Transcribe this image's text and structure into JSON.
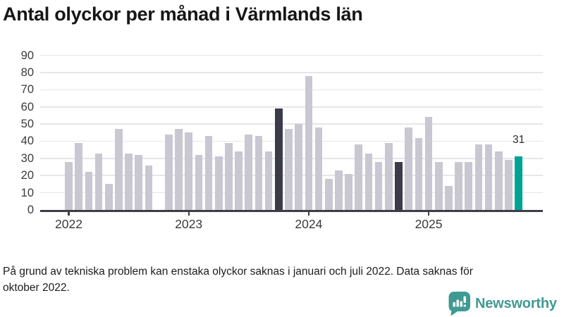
{
  "header": {
    "title": "Antal olyckor per månad i Värmlands län"
  },
  "footnote": {
    "line1": "På grund av tekniska problem kan enstaka olyckor saknas i januari och juli 2022. Data saknas för",
    "line2": "oktober 2022."
  },
  "branding": {
    "name": "Newsworthy",
    "icon": "newsworthy-bubble-chart-icon"
  },
  "colors": {
    "bar_base": "#c9c7d2",
    "bar_dark": "#3b3b4a",
    "bar_accent": "#00a296",
    "axis": "#3d3d47",
    "grid": "#e6e5ea",
    "tick_label": "#3a3a3a",
    "brand_teal": "#3f9a92"
  },
  "chart_data": {
    "type": "bar",
    "title": "Antal olyckor per månad i Värmlands län",
    "xlabel": "",
    "ylabel": "",
    "ylim": [
      0,
      90
    ],
    "yticks": [
      0,
      10,
      20,
      30,
      40,
      50,
      60,
      70,
      80,
      90
    ],
    "grid": "horizontal",
    "legend": "none",
    "missing_months": [
      "2022-10"
    ],
    "annotation": {
      "text": "31",
      "month": "2025-10"
    },
    "xticks": [
      {
        "label": "2022",
        "month_index": 0
      },
      {
        "label": "2023",
        "month_index": 12
      },
      {
        "label": "2024",
        "month_index": 24
      },
      {
        "label": "2025",
        "month_index": 36
      }
    ],
    "points": [
      {
        "month": "2022-01",
        "value": 28,
        "highlight": "base"
      },
      {
        "month": "2022-02",
        "value": 39,
        "highlight": "base"
      },
      {
        "month": "2022-03",
        "value": 22,
        "highlight": "base"
      },
      {
        "month": "2022-04",
        "value": 33,
        "highlight": "base"
      },
      {
        "month": "2022-05",
        "value": 15,
        "highlight": "base"
      },
      {
        "month": "2022-06",
        "value": 47,
        "highlight": "base"
      },
      {
        "month": "2022-07",
        "value": 33,
        "highlight": "base"
      },
      {
        "month": "2022-08",
        "value": 32,
        "highlight": "base"
      },
      {
        "month": "2022-09",
        "value": 26,
        "highlight": "base"
      },
      {
        "month": "2022-10",
        "value": null,
        "highlight": "base"
      },
      {
        "month": "2022-11",
        "value": 44,
        "highlight": "base"
      },
      {
        "month": "2022-12",
        "value": 47,
        "highlight": "base"
      },
      {
        "month": "2023-01",
        "value": 45,
        "highlight": "base"
      },
      {
        "month": "2023-02",
        "value": 32,
        "highlight": "base"
      },
      {
        "month": "2023-03",
        "value": 43,
        "highlight": "base"
      },
      {
        "month": "2023-04",
        "value": 31,
        "highlight": "base"
      },
      {
        "month": "2023-05",
        "value": 39,
        "highlight": "base"
      },
      {
        "month": "2023-06",
        "value": 34,
        "highlight": "base"
      },
      {
        "month": "2023-07",
        "value": 44,
        "highlight": "base"
      },
      {
        "month": "2023-08",
        "value": 43,
        "highlight": "base"
      },
      {
        "month": "2023-09",
        "value": 34,
        "highlight": "base"
      },
      {
        "month": "2023-10",
        "value": 59,
        "highlight": "dark"
      },
      {
        "month": "2023-11",
        "value": 47,
        "highlight": "base"
      },
      {
        "month": "2023-12",
        "value": 50,
        "highlight": "base"
      },
      {
        "month": "2024-01",
        "value": 78,
        "highlight": "base"
      },
      {
        "month": "2024-02",
        "value": 48,
        "highlight": "base"
      },
      {
        "month": "2024-03",
        "value": 18,
        "highlight": "base"
      },
      {
        "month": "2024-04",
        "value": 23,
        "highlight": "base"
      },
      {
        "month": "2024-05",
        "value": 21,
        "highlight": "base"
      },
      {
        "month": "2024-06",
        "value": 38,
        "highlight": "base"
      },
      {
        "month": "2024-07",
        "value": 33,
        "highlight": "base"
      },
      {
        "month": "2024-08",
        "value": 28,
        "highlight": "base"
      },
      {
        "month": "2024-09",
        "value": 39,
        "highlight": "base"
      },
      {
        "month": "2024-10",
        "value": 28,
        "highlight": "dark"
      },
      {
        "month": "2024-11",
        "value": 48,
        "highlight": "base"
      },
      {
        "month": "2024-12",
        "value": 42,
        "highlight": "base"
      },
      {
        "month": "2025-01",
        "value": 54,
        "highlight": "base"
      },
      {
        "month": "2025-02",
        "value": 28,
        "highlight": "base"
      },
      {
        "month": "2025-03",
        "value": 14,
        "highlight": "base"
      },
      {
        "month": "2025-04",
        "value": 28,
        "highlight": "base"
      },
      {
        "month": "2025-05",
        "value": 28,
        "highlight": "base"
      },
      {
        "month": "2025-06",
        "value": 38,
        "highlight": "base"
      },
      {
        "month": "2025-07",
        "value": 38,
        "highlight": "base"
      },
      {
        "month": "2025-08",
        "value": 34,
        "highlight": "base"
      },
      {
        "month": "2025-09",
        "value": 29,
        "highlight": "base"
      },
      {
        "month": "2025-10",
        "value": 31,
        "highlight": "accent"
      }
    ]
  }
}
